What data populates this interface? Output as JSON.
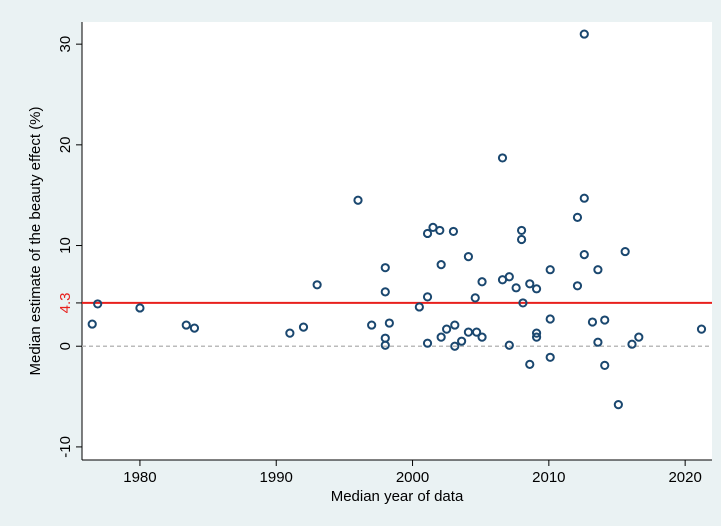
{
  "chart_data": {
    "type": "scatter",
    "x_label": "Median year of data",
    "y_label": "Median estimate of the beauty effect (%)",
    "x": [
      1976.5,
      1976.9,
      1980,
      1983.4,
      1984.0,
      1991.0,
      1992.0,
      1993.0,
      1996.0,
      1997.0,
      1998.0,
      1998.0,
      1998.0,
      1998.0,
      1998.3,
      2000.5,
      2001.1,
      2001.1,
      2001.1,
      2001.5,
      2002.0,
      2002.1,
      2002.1,
      2002.5,
      2003.0,
      2003.1,
      2003.1,
      2003.6,
      2004.1,
      2004.1,
      2004.7,
      2004.6,
      2005.1,
      2005.1,
      2006.6,
      2006.6,
      2007.1,
      2007.1,
      2007.6,
      2008.0,
      2008.0,
      2008.1,
      2008.6,
      2008.6,
      2009.1,
      2009.1,
      2009.1,
      2010.1,
      2010.1,
      2010.1,
      2012.1,
      2012.1,
      2012.6,
      2012.6,
      2012.6,
      2013.2,
      2013.6,
      2013.6,
      2014.1,
      2014.1,
      2015.1,
      2015.6,
      2016.1,
      2016.6,
      2021.2
    ],
    "values": [
      2.2,
      4.2,
      3.8,
      2.1,
      1.8,
      1.3,
      1.9,
      6.1,
      14.5,
      2.1,
      7.8,
      5.4,
      0.8,
      0.1,
      2.3,
      3.9,
      4.9,
      11.2,
      0.3,
      11.8,
      11.5,
      8.1,
      0.9,
      1.7,
      11.4,
      2.1,
      0,
      0.5,
      1.4,
      8.9,
      1.4,
      4.8,
      6.4,
      0.9,
      18.7,
      6.6,
      6.9,
      0.1,
      5.8,
      11.5,
      10.6,
      4.3,
      -1.8,
      6.2,
      5.7,
      1.3,
      0.9,
      7.6,
      2.7,
      -1.1,
      12.8,
      6.0,
      31,
      14.7,
      9.1,
      2.4,
      7.6,
      0.4,
      2.6,
      -1.9,
      -5.8,
      9.4,
      0.2,
      0.9,
      1.7
    ],
    "color": "#1a476f",
    "xlim": [
      1975.75,
      2021.97
    ],
    "ylim": [
      -11.3,
      32.2
    ],
    "xticks": [
      1980,
      1990,
      2000,
      2010,
      2020
    ],
    "yticks": [
      -10,
      0,
      10,
      20,
      30
    ],
    "reference_lines": [
      {
        "value": 4.3,
        "color": "#e8201d",
        "label": 4.3
      },
      {
        "value": 0,
        "color": "#bbbbbb",
        "style": "dashed"
      }
    ]
  }
}
